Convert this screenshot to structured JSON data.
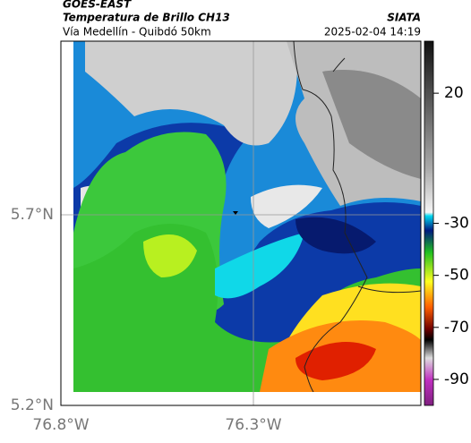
{
  "header": {
    "title": "GOES-EAST",
    "subtitle": "Temperatura de Brillo CH13",
    "source": "SIATA",
    "region": "Vía Medellín - Quibdó 50km",
    "datetime": "2025-02-04 14:19"
  },
  "map": {
    "lat_labels": [
      "5.7°N",
      "5.2°N"
    ],
    "lon_labels": [
      "76.8°W",
      "76.3°W"
    ]
  },
  "colorbar": {
    "lim": [
      -100,
      40
    ],
    "ticks": [
      20,
      -30,
      -50,
      -70,
      -90
    ]
  }
}
